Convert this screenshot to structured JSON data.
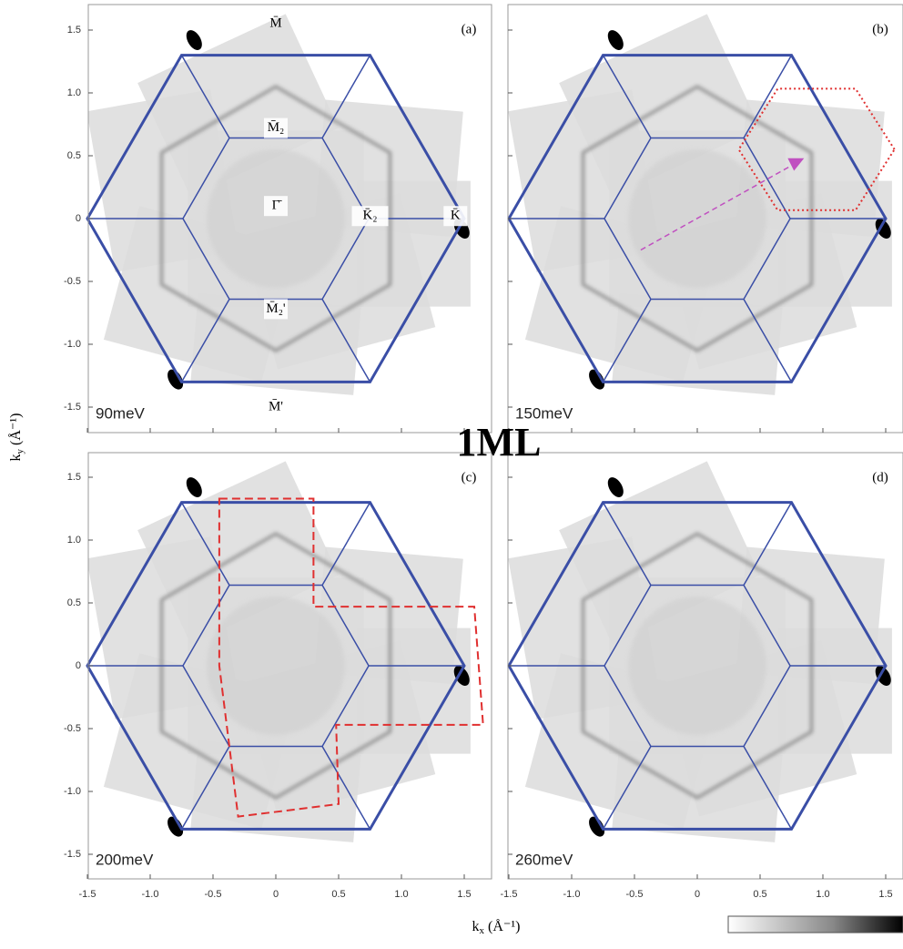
{
  "figure": {
    "center_label": "1ML",
    "y_label": {
      "symbol": "k",
      "subscript": "y",
      "unit": "(Å⁻¹)"
    },
    "x_label": {
      "symbol": "k",
      "subscript": "x",
      "unit": "(Å⁻¹)"
    },
    "xticks": [
      -1.5,
      {
        "value": -1,
        "label": "-1.0"
      },
      -0.5,
      0,
      0.5,
      {
        "value": 1,
        "label": "1.0"
      },
      1.5
    ],
    "yticks": [
      1.5,
      {
        "value": 1,
        "label": "1.0"
      },
      0.5,
      0,
      -0.5,
      {
        "value": -1,
        "label": "-1.0"
      },
      -1.5
    ],
    "panels": [
      {
        "label": "(a)",
        "energy": "90meV"
      },
      {
        "label": "(b)",
        "energy": "150meV"
      },
      {
        "label": "(c)",
        "energy": "200meV"
      },
      {
        "label": "(d)",
        "energy": "260meV"
      }
    ],
    "annotations": [
      "M̄",
      "M̄₂",
      "Γ̄",
      "K̄₂",
      "K̄",
      "M̄₂'",
      "M̄'"
    ]
  }
}
